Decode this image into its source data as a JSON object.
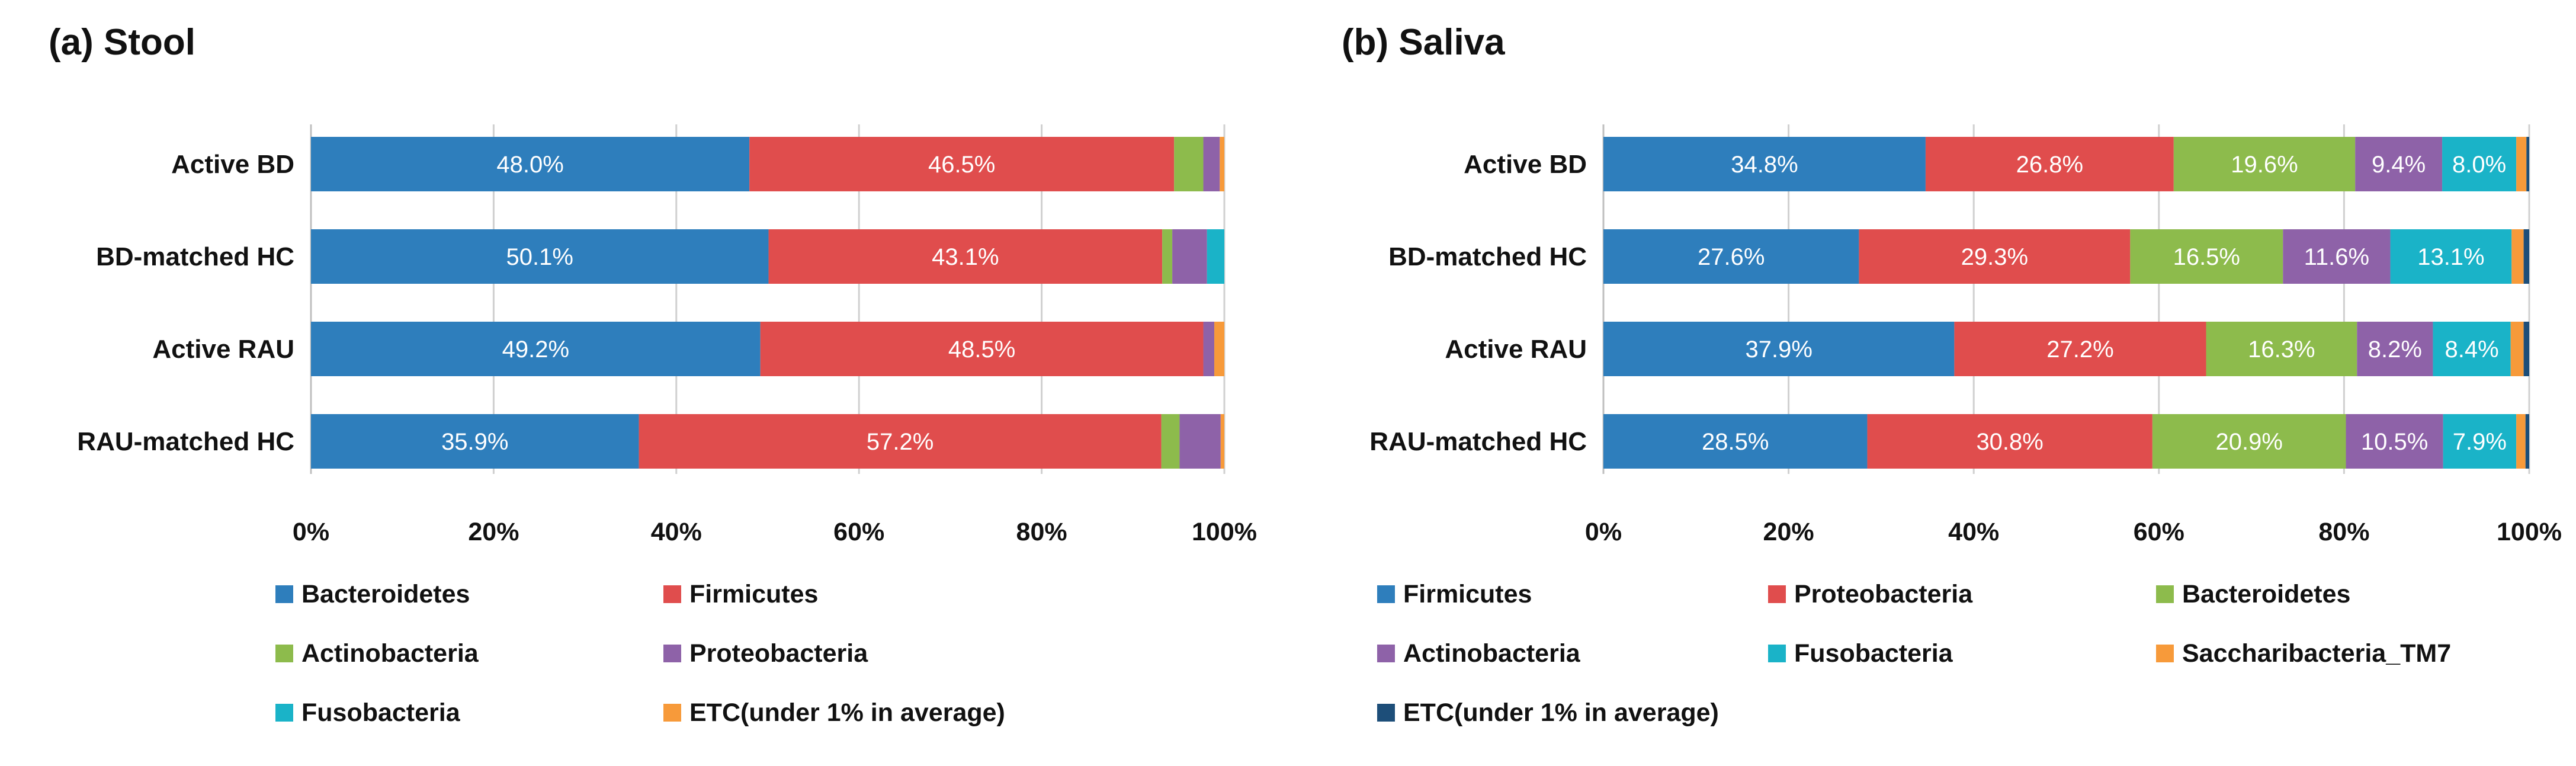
{
  "chart_data": [
    {
      "type": "bar",
      "orientation": "horizontal",
      "stacked": "percent",
      "title": "(a) Stool",
      "categories": [
        "Active BD",
        "BD-matched HC",
        "Active RAU",
        "RAU-matched HC"
      ],
      "xlim": [
        0,
        100
      ],
      "xticks": [
        "0%",
        "20%",
        "40%",
        "60%",
        "80%",
        "100%"
      ],
      "grid": true,
      "legend_position": "bottom",
      "series": [
        {
          "name": "Bacteroidetes",
          "color": "#2e7ebc",
          "values": [
            48.0,
            50.1,
            49.2,
            35.9
          ],
          "labels": [
            "48.0%",
            "50.1%",
            "49.2%",
            "35.9%"
          ]
        },
        {
          "name": "Firmicutes",
          "color": "#e04d4d",
          "values": [
            46.5,
            43.1,
            48.5,
            57.2
          ],
          "labels": [
            "46.5%",
            "43.1%",
            "48.5%",
            "57.2%"
          ]
        },
        {
          "name": "Actinobacteria",
          "color": "#8dbb4c",
          "values": [
            3.2,
            1.1,
            0.0,
            2.0
          ],
          "labels": [
            "",
            "",
            "",
            ""
          ]
        },
        {
          "name": "Proteobacteria",
          "color": "#8e62a8",
          "values": [
            1.8,
            3.8,
            1.2,
            4.5
          ],
          "labels": [
            "",
            "",
            "",
            ""
          ]
        },
        {
          "name": "Fusobacteria",
          "color": "#1ab3c8",
          "values": [
            0.0,
            1.9,
            0.0,
            0.0
          ],
          "labels": [
            "",
            "",
            "",
            ""
          ]
        },
        {
          "name": "ETC(under 1% in average)",
          "color": "#f79a3a",
          "values": [
            0.5,
            0.0,
            1.1,
            0.4
          ],
          "labels": [
            "",
            "",
            "",
            ""
          ]
        }
      ]
    },
    {
      "type": "bar",
      "orientation": "horizontal",
      "stacked": "percent",
      "title": "(b) Saliva",
      "categories": [
        "Active BD",
        "BD-matched HC",
        "Active RAU",
        "RAU-matched HC"
      ],
      "xlim": [
        0,
        100
      ],
      "xticks": [
        "0%",
        "20%",
        "40%",
        "60%",
        "80%",
        "100%"
      ],
      "grid": true,
      "legend_position": "bottom",
      "series": [
        {
          "name": "Firmicutes",
          "color": "#2e7ebc",
          "values": [
            34.8,
            27.6,
            37.9,
            28.5
          ],
          "labels": [
            "34.8%",
            "27.6%",
            "37.9%",
            "28.5%"
          ]
        },
        {
          "name": "Proteobacteria",
          "color": "#e04d4d",
          "values": [
            26.8,
            29.3,
            27.2,
            30.8
          ],
          "labels": [
            "26.8%",
            "29.3%",
            "27.2%",
            "30.8%"
          ]
        },
        {
          "name": "Bacteroidetes",
          "color": "#8dbb4c",
          "values": [
            19.6,
            16.5,
            16.3,
            20.9
          ],
          "labels": [
            "19.6%",
            "16.5%",
            "16.3%",
            "20.9%"
          ]
        },
        {
          "name": "Actinobacteria",
          "color": "#8e62a8",
          "values": [
            9.4,
            11.6,
            8.2,
            10.5
          ],
          "labels": [
            "9.4%",
            "11.6%",
            "8.2%",
            "10.5%"
          ]
        },
        {
          "name": "Fusobacteria",
          "color": "#1ab3c8",
          "values": [
            8.0,
            13.1,
            8.4,
            7.9
          ],
          "labels": [
            "8.0%",
            "13.1%",
            "8.4%",
            "7.9%"
          ]
        },
        {
          "name": "Saccharibacteria_TM7",
          "color": "#f79a3a",
          "values": [
            1.1,
            1.3,
            1.4,
            1.0
          ],
          "labels": [
            "",
            "",
            "",
            ""
          ]
        },
        {
          "name": "ETC(under 1% in average)",
          "color": "#1d4e79",
          "values": [
            0.3,
            0.6,
            0.6,
            0.4
          ],
          "labels": [
            "",
            "",
            "",
            ""
          ]
        }
      ]
    }
  ]
}
